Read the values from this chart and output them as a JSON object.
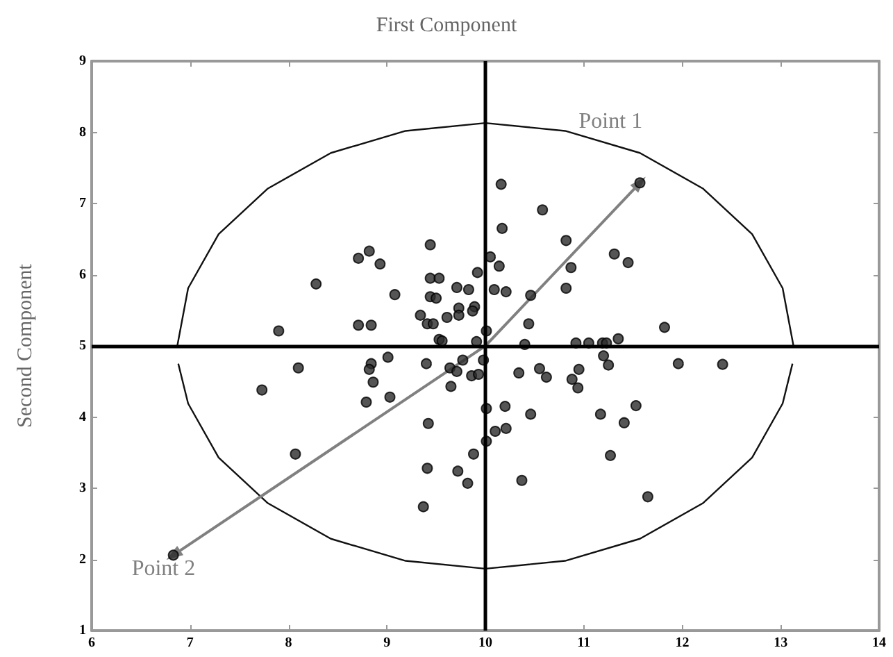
{
  "chart_data": {
    "type": "scatter",
    "title": "First Component",
    "ylabel": "Second Component",
    "xlim": [
      6,
      14
    ],
    "xticks": [
      6,
      7,
      8,
      9,
      10,
      11,
      12,
      13,
      14
    ],
    "ylim": [
      1,
      9
    ],
    "yticks": [
      1,
      2,
      3,
      4,
      5,
      6,
      7,
      8,
      9
    ],
    "grid": false,
    "marker": "circle",
    "series": [
      {
        "color": "#2b2b2b",
        "x": [
          10.16,
          10.58,
          10.17,
          10.82,
          11.31,
          11.45,
          11.57,
          10.05,
          9.92,
          10.14,
          10.87,
          10.82,
          10.09,
          10.21,
          10.46,
          10.44,
          11.82,
          10.01,
          9.44,
          8.82,
          8.71,
          8.93,
          8.28,
          9.44,
          9.53,
          9.08,
          9.71,
          9.83,
          9.44,
          9.5,
          9.34,
          9.73,
          9.89,
          9.87,
          9.73,
          9.61,
          9.41,
          9.47,
          8.71,
          8.84,
          7.9,
          9.53,
          9.56,
          9.91,
          8.1,
          7.73,
          8.84,
          8.82,
          9.01,
          9.4,
          8.86,
          8.79,
          9.03,
          9.64,
          9.71,
          9.77,
          9.65,
          9.86,
          9.93,
          9.98,
          10.01,
          9.42,
          10.1,
          10.01,
          8.07,
          9.88,
          9.41,
          9.72,
          9.82,
          9.37,
          6.83,
          10.4,
          10.92,
          11.05,
          11.19,
          11.23,
          11.35,
          10.34,
          10.55,
          10.62,
          10.95,
          10.88,
          10.94,
          11.2,
          11.25,
          11.96,
          12.41,
          10.2,
          10.46,
          10.21,
          11.17,
          11.53,
          11.41,
          11.27,
          10.37,
          11.65
        ],
        "values": [
          7.27,
          6.91,
          6.65,
          6.48,
          6.29,
          6.17,
          7.29,
          6.25,
          6.03,
          6.12,
          6.1,
          5.81,
          5.79,
          5.76,
          5.71,
          5.31,
          5.26,
          5.21,
          6.42,
          6.33,
          6.23,
          6.15,
          5.87,
          5.95,
          5.95,
          5.72,
          5.82,
          5.79,
          5.69,
          5.67,
          5.43,
          5.53,
          5.55,
          5.49,
          5.43,
          5.4,
          5.31,
          5.31,
          5.29,
          5.29,
          5.21,
          5.09,
          5.07,
          5.06,
          4.69,
          4.38,
          4.75,
          4.67,
          4.84,
          4.75,
          4.49,
          4.21,
          4.28,
          4.69,
          4.64,
          4.8,
          4.43,
          4.58,
          4.6,
          4.8,
          4.12,
          3.91,
          3.8,
          3.66,
          3.48,
          3.48,
          3.28,
          3.24,
          3.07,
          2.74,
          2.06,
          5.02,
          5.04,
          5.04,
          5.04,
          5.04,
          5.1,
          4.62,
          4.68,
          4.56,
          4.67,
          4.53,
          4.41,
          4.86,
          4.73,
          4.75,
          4.74,
          4.15,
          4.04,
          3.84,
          4.04,
          4.16,
          3.92,
          3.46,
          3.11,
          2.88
        ]
      },
      {
        "type": "line",
        "color": "#111111",
        "marker": "none",
        "x": [
          6.87,
          6.98,
          7.29,
          7.79,
          8.43,
          9.19,
          10,
          10.81,
          11.57,
          12.21,
          12.71,
          13.02,
          13.13
        ],
        "values": [
          5,
          5.81,
          6.57,
          7.21,
          7.71,
          8.02,
          8.13,
          8.02,
          7.71,
          7.21,
          6.57,
          5.81,
          5
        ]
      },
      {
        "type": "line",
        "color": "#111111",
        "marker": "none",
        "x": [
          6.88,
          6.98,
          7.29,
          7.79,
          8.43,
          9.19,
          10,
          10.81,
          11.57,
          12.21,
          12.71,
          13.02,
          13.12
        ],
        "values": [
          4.75,
          4.19,
          3.43,
          2.79,
          2.29,
          1.98,
          1.87,
          1.98,
          2.29,
          2.79,
          3.43,
          4.19,
          4.75
        ]
      },
      {
        "type": "line",
        "color": "#808080",
        "marker": "triangle",
        "x": [
          6.83,
          10,
          11.57
        ],
        "values": [
          2.06,
          5,
          7.29
        ]
      }
    ],
    "ref_lines": [
      {
        "axis": "x",
        "value": 10,
        "color": "#000000"
      },
      {
        "axis": "y",
        "value": 5,
        "color": "#000000"
      }
    ],
    "annotations": [
      {
        "text": "Point 1",
        "x": 11.57,
        "y": 7.29
      },
      {
        "text": "Point 2",
        "x": 6.83,
        "y": 2.06
      }
    ]
  }
}
